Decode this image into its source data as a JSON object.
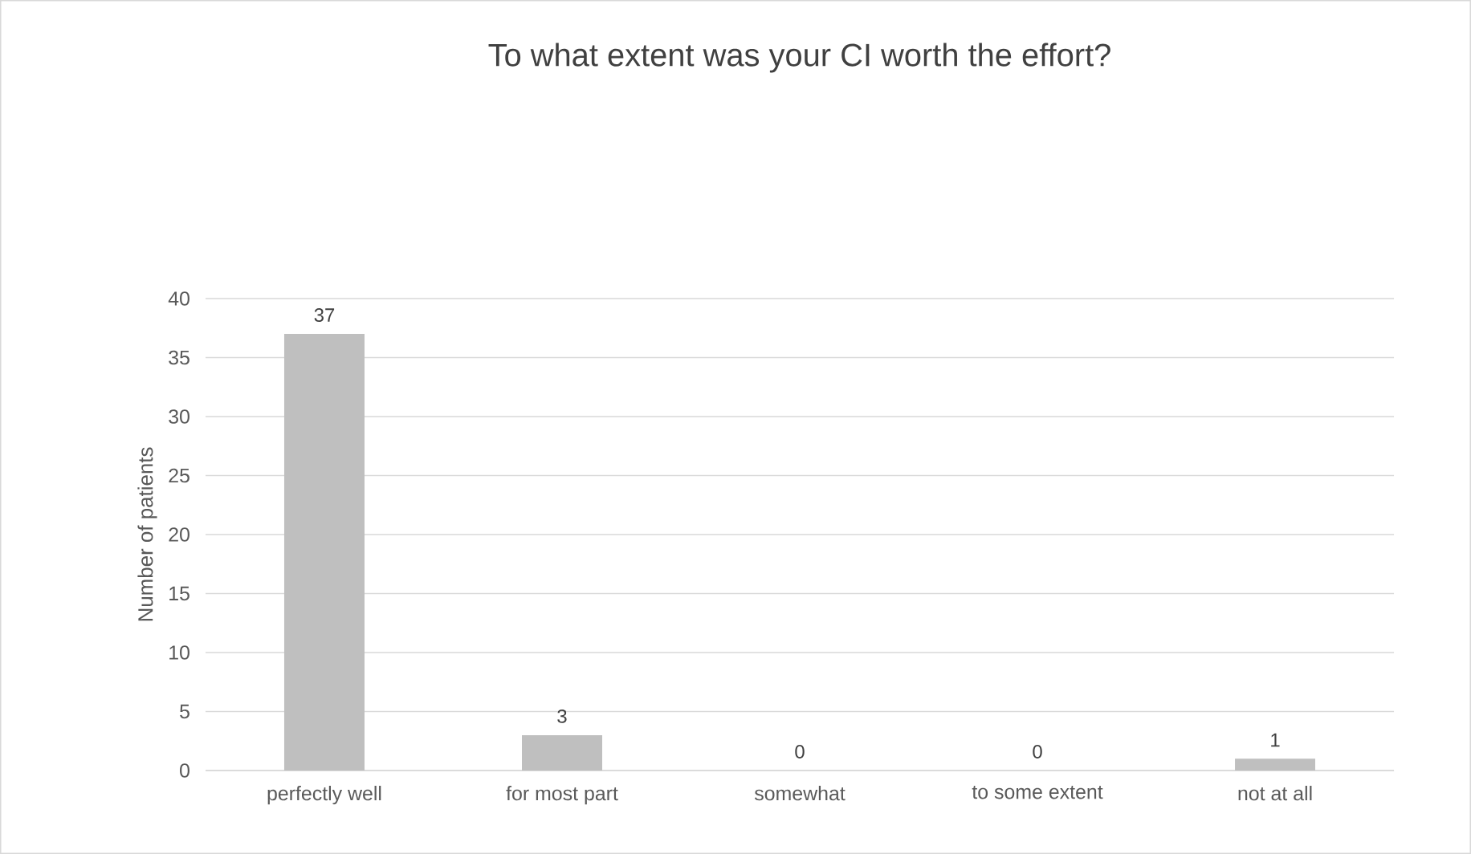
{
  "chart_data": {
    "type": "bar",
    "title": "To what extent was your CI worth the effort?",
    "ylabel": "Number of patients",
    "categories": [
      "perfectly well",
      "for most part",
      "somewhat",
      "to some extent",
      "not at all"
    ],
    "values": [
      37,
      3,
      0,
      0,
      1
    ],
    "color": "#bfbfbf",
    "ylim": [
      0,
      40
    ],
    "yticks": [
      0,
      5,
      10,
      15,
      20,
      25,
      30,
      35,
      40
    ],
    "grid": "y",
    "data_labels": true
  }
}
